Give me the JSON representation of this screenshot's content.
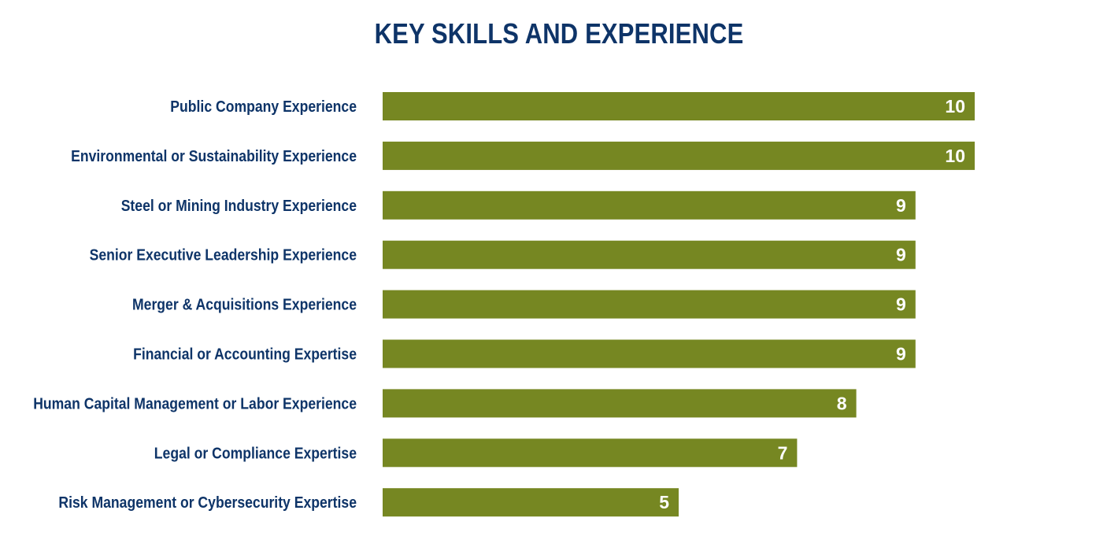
{
  "colors": {
    "title": "#0e3468",
    "label": "#0e3468",
    "bar": "#768722",
    "value_text": "#ffffff"
  },
  "chart_data": {
    "type": "bar",
    "orientation": "horizontal",
    "title": "KEY SKILLS AND EXPERIENCE",
    "xlabel": "",
    "ylabel": "",
    "xlim": [
      0,
      10
    ],
    "grid": false,
    "legend": "none",
    "categories": [
      "Public Company Experience",
      "Environmental or Sustainability Experience",
      "Steel or Mining Industry Experience",
      "Senior Executive Leadership Experience",
      "Merger & Acquisitions Experience",
      "Financial or Accounting Expertise",
      "Human Capital Management or Labor Experience",
      "Legal or Compliance Expertise",
      "Risk Management or Cybersecurity Expertise"
    ],
    "values": [
      10,
      10,
      9,
      9,
      9,
      9,
      8,
      7,
      5
    ],
    "data_labels": [
      "10",
      "10",
      "9",
      "9",
      "9",
      "9",
      "8",
      "7",
      "5"
    ]
  }
}
